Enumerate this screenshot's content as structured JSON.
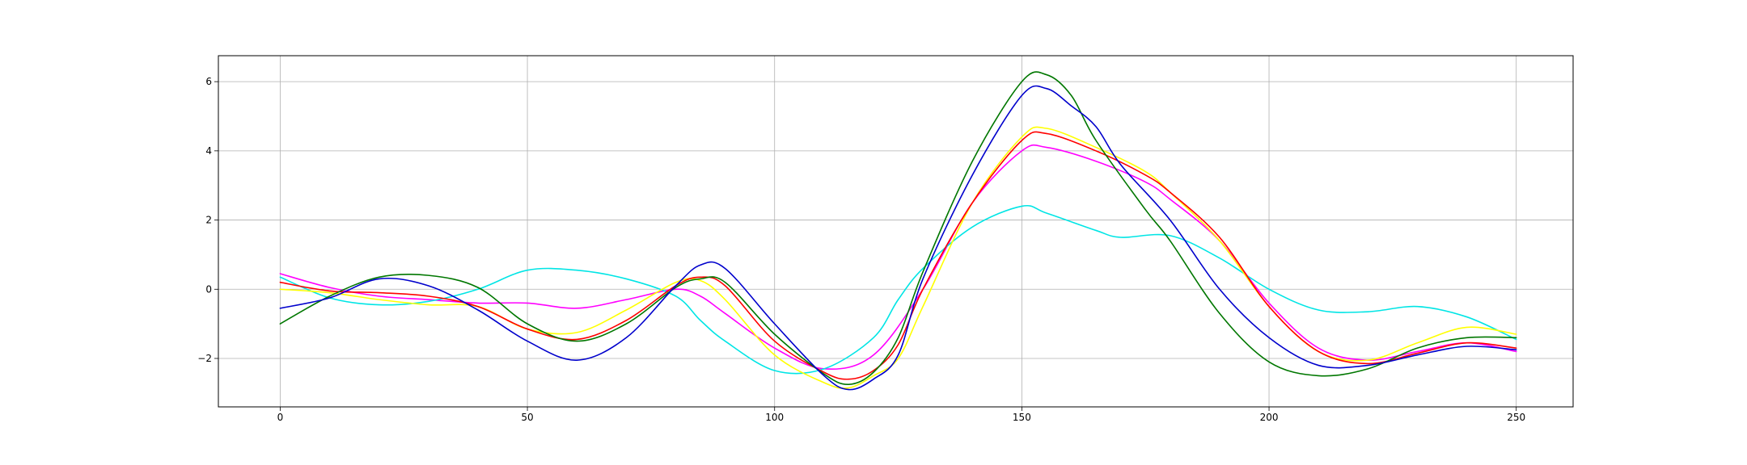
{
  "chart_data": {
    "type": "line",
    "title": "",
    "xlabel": "",
    "ylabel": "",
    "xlim": [
      -12.5,
      261.5
    ],
    "ylim": [
      -3.4,
      6.75
    ],
    "xticks": [
      0,
      50,
      100,
      150,
      200,
      250
    ],
    "xtick_labels": [
      "0",
      "50",
      "100",
      "150",
      "200",
      "250"
    ],
    "yticks": [
      -2,
      0,
      2,
      4,
      6
    ],
    "ytick_labels": [
      "−2",
      "0",
      "2",
      "4",
      "6"
    ],
    "grid": true,
    "legend": "none",
    "series": [
      {
        "color": "#ff00ff",
        "points": [
          [
            0,
            0.45
          ],
          [
            10,
            0.05
          ],
          [
            20,
            -0.2
          ],
          [
            30,
            -0.3
          ],
          [
            40,
            -0.4
          ],
          [
            50,
            -0.4
          ],
          [
            60,
            -0.55
          ],
          [
            70,
            -0.3
          ],
          [
            80,
            0.0
          ],
          [
            85,
            -0.2
          ],
          [
            90,
            -0.7
          ],
          [
            100,
            -1.7
          ],
          [
            110,
            -2.3
          ],
          [
            120,
            -1.9
          ],
          [
            130,
            0.0
          ],
          [
            140,
            2.5
          ],
          [
            150,
            4.0
          ],
          [
            155,
            4.1
          ],
          [
            165,
            3.7
          ],
          [
            175,
            3.1
          ],
          [
            180,
            2.6
          ],
          [
            190,
            1.4
          ],
          [
            200,
            -0.4
          ],
          [
            210,
            -1.7
          ],
          [
            220,
            -2.05
          ],
          [
            230,
            -1.8
          ],
          [
            240,
            -1.55
          ],
          [
            250,
            -1.8
          ]
        ]
      },
      {
        "color": "#00e5e5",
        "points": [
          [
            0,
            0.35
          ],
          [
            10,
            -0.25
          ],
          [
            20,
            -0.45
          ],
          [
            30,
            -0.35
          ],
          [
            40,
            0.0
          ],
          [
            50,
            0.55
          ],
          [
            60,
            0.55
          ],
          [
            70,
            0.3
          ],
          [
            80,
            -0.2
          ],
          [
            85,
            -0.9
          ],
          [
            90,
            -1.5
          ],
          [
            100,
            -2.35
          ],
          [
            110,
            -2.3
          ],
          [
            120,
            -1.4
          ],
          [
            125,
            -0.3
          ],
          [
            130,
            0.6
          ],
          [
            140,
            1.8
          ],
          [
            150,
            2.4
          ],
          [
            155,
            2.2
          ],
          [
            165,
            1.7
          ],
          [
            170,
            1.5
          ],
          [
            180,
            1.55
          ],
          [
            190,
            0.9
          ],
          [
            200,
            0.0
          ],
          [
            210,
            -0.6
          ],
          [
            220,
            -0.65
          ],
          [
            230,
            -0.5
          ],
          [
            240,
            -0.8
          ],
          [
            250,
            -1.45
          ]
        ]
      },
      {
        "color": "#ffff00",
        "points": [
          [
            0,
            0.0
          ],
          [
            10,
            -0.1
          ],
          [
            20,
            -0.3
          ],
          [
            30,
            -0.45
          ],
          [
            40,
            -0.5
          ],
          [
            50,
            -1.15
          ],
          [
            60,
            -1.25
          ],
          [
            70,
            -0.6
          ],
          [
            80,
            0.2
          ],
          [
            85,
            0.25
          ],
          [
            90,
            -0.3
          ],
          [
            100,
            -1.9
          ],
          [
            110,
            -2.7
          ],
          [
            115,
            -2.85
          ],
          [
            120,
            -2.5
          ],
          [
            125,
            -2.0
          ],
          [
            130,
            -0.5
          ],
          [
            140,
            2.5
          ],
          [
            150,
            4.4
          ],
          [
            155,
            4.65
          ],
          [
            165,
            4.1
          ],
          [
            175,
            3.4
          ],
          [
            180,
            2.8
          ],
          [
            190,
            1.4
          ],
          [
            200,
            -0.5
          ],
          [
            210,
            -1.8
          ],
          [
            220,
            -2.05
          ],
          [
            230,
            -1.55
          ],
          [
            240,
            -1.1
          ],
          [
            250,
            -1.3
          ]
        ]
      },
      {
        "color": "#ff0000",
        "points": [
          [
            0,
            0.2
          ],
          [
            10,
            -0.05
          ],
          [
            20,
            -0.1
          ],
          [
            30,
            -0.2
          ],
          [
            40,
            -0.5
          ],
          [
            50,
            -1.15
          ],
          [
            60,
            -1.45
          ],
          [
            70,
            -0.9
          ],
          [
            80,
            0.1
          ],
          [
            85,
            0.35
          ],
          [
            90,
            0.1
          ],
          [
            100,
            -1.5
          ],
          [
            110,
            -2.4
          ],
          [
            115,
            -2.6
          ],
          [
            120,
            -2.35
          ],
          [
            125,
            -1.6
          ],
          [
            130,
            0.0
          ],
          [
            140,
            2.5
          ],
          [
            150,
            4.3
          ],
          [
            155,
            4.5
          ],
          [
            165,
            4.0
          ],
          [
            175,
            3.3
          ],
          [
            180,
            2.8
          ],
          [
            190,
            1.5
          ],
          [
            200,
            -0.5
          ],
          [
            210,
            -1.8
          ],
          [
            220,
            -2.15
          ],
          [
            230,
            -1.85
          ],
          [
            240,
            -1.55
          ],
          [
            250,
            -1.7
          ]
        ]
      },
      {
        "color": "#007700",
        "points": [
          [
            0,
            -1.0
          ],
          [
            10,
            -0.2
          ],
          [
            20,
            0.35
          ],
          [
            30,
            0.4
          ],
          [
            40,
            0.05
          ],
          [
            50,
            -1.0
          ],
          [
            60,
            -1.5
          ],
          [
            70,
            -1.0
          ],
          [
            80,
            0.05
          ],
          [
            85,
            0.3
          ],
          [
            90,
            0.2
          ],
          [
            100,
            -1.3
          ],
          [
            110,
            -2.45
          ],
          [
            115,
            -2.75
          ],
          [
            120,
            -2.4
          ],
          [
            125,
            -1.4
          ],
          [
            130,
            0.5
          ],
          [
            140,
            3.7
          ],
          [
            150,
            6.0
          ],
          [
            155,
            6.2
          ],
          [
            160,
            5.6
          ],
          [
            165,
            4.3
          ],
          [
            175,
            2.3
          ],
          [
            180,
            1.4
          ],
          [
            190,
            -0.7
          ],
          [
            200,
            -2.1
          ],
          [
            210,
            -2.5
          ],
          [
            220,
            -2.3
          ],
          [
            230,
            -1.7
          ],
          [
            240,
            -1.4
          ],
          [
            250,
            -1.4
          ]
        ]
      },
      {
        "color": "#0000cc",
        "points": [
          [
            0,
            -0.55
          ],
          [
            10,
            -0.25
          ],
          [
            20,
            0.3
          ],
          [
            30,
            0.1
          ],
          [
            40,
            -0.6
          ],
          [
            50,
            -1.5
          ],
          [
            60,
            -2.05
          ],
          [
            70,
            -1.4
          ],
          [
            80,
            0.1
          ],
          [
            85,
            0.7
          ],
          [
            90,
            0.6
          ],
          [
            100,
            -1.0
          ],
          [
            110,
            -2.5
          ],
          [
            115,
            -2.9
          ],
          [
            120,
            -2.6
          ],
          [
            125,
            -1.9
          ],
          [
            130,
            0.3
          ],
          [
            140,
            3.3
          ],
          [
            150,
            5.6
          ],
          [
            155,
            5.8
          ],
          [
            160,
            5.3
          ],
          [
            165,
            4.7
          ],
          [
            170,
            3.6
          ],
          [
            180,
            2.0
          ],
          [
            190,
            0.0
          ],
          [
            200,
            -1.4
          ],
          [
            210,
            -2.2
          ],
          [
            220,
            -2.2
          ],
          [
            230,
            -1.9
          ],
          [
            240,
            -1.65
          ],
          [
            250,
            -1.75
          ]
        ]
      }
    ]
  }
}
